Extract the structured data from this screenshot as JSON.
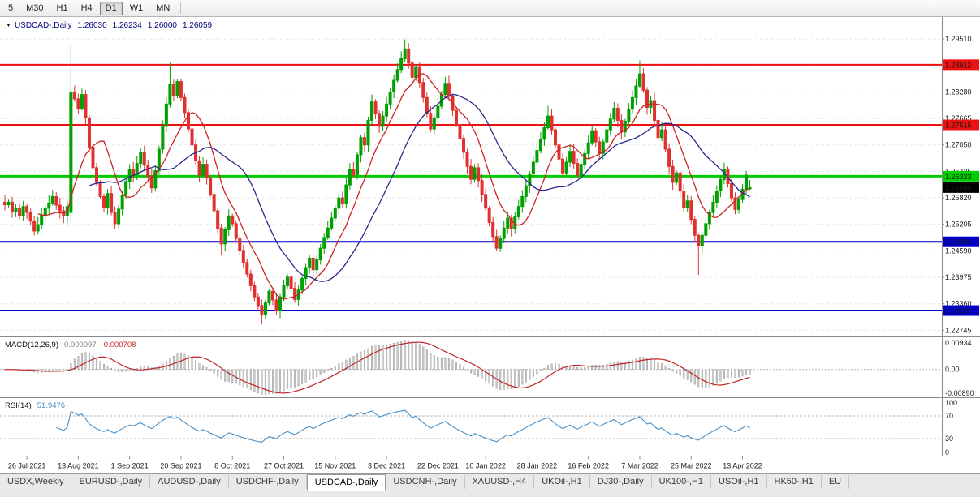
{
  "toolbar": {
    "buttons": [
      "5",
      "M30",
      "H1",
      "H4",
      "D1",
      "W1",
      "MN"
    ],
    "active": "D1"
  },
  "chart": {
    "title": {
      "dropdown": "▼",
      "symbol": "USDCAD-,Daily",
      "open": "1.26030",
      "high": "1.26234",
      "low": "1.26000",
      "close": "1.26059"
    },
    "price_axis_ticks": [
      "1.29510",
      "1.28895",
      "1.28280",
      "1.27665",
      "1.27050",
      "1.26435",
      "1.25820",
      "1.25205",
      "1.24590",
      "1.23975",
      "1.23360",
      "1.22745"
    ],
    "hlines": [
      {
        "price": 1.28912,
        "label": "1.28912",
        "color": "#ee1111",
        "width": 2
      },
      {
        "price": 1.27515,
        "label": "1.27515",
        "color": "#ee1111",
        "width": 2
      },
      {
        "price": 1.26323,
        "label": "1.26323",
        "color": "#00cc00",
        "width": 3
      },
      {
        "price": 1.248,
        "label": "1.24800",
        "color": "#0000cc",
        "width": 2
      },
      {
        "price": 1.23203,
        "label": "1.23203",
        "color": "#0000cc",
        "width": 2
      }
    ],
    "current_price": {
      "price": 1.26059,
      "label": "1.26059",
      "bg": "#000000"
    }
  },
  "chart_data": {
    "type": "candlestick",
    "symbol": "USDCAD",
    "timeframe": "Daily",
    "y_range": {
      "min": 1.2262,
      "max": 1.3002
    },
    "x_labels": [
      "26 Jul 2021",
      "13 Aug 2021",
      "1 Sep 2021",
      "20 Sep 2021",
      "8 Oct 2021",
      "27 Oct 2021",
      "15 Nov 2021",
      "3 Dec 2021",
      "22 Dec 2021",
      "10 Jan 2022",
      "28 Jan 2022",
      "16 Feb 2022",
      "7 Mar 2022",
      "25 Mar 2022",
      "13 Apr 2022"
    ],
    "x_label_indices": [
      6,
      20,
      34,
      48,
      62,
      76,
      90,
      104,
      118,
      131,
      145,
      159,
      173,
      187,
      201
    ],
    "closes": [
      1.2566,
      1.2572,
      1.255,
      1.2558,
      1.2541,
      1.2562,
      1.2548,
      1.2528,
      1.2505,
      1.252,
      1.2542,
      1.2558,
      1.257,
      1.2585,
      1.2565,
      1.2552,
      1.254,
      1.2562,
      1.2828,
      1.2812,
      1.279,
      1.2822,
      1.2768,
      1.27,
      1.2652,
      1.2618,
      1.2585,
      1.256,
      1.2592,
      1.2548,
      1.2522,
      1.2556,
      1.2588,
      1.262,
      1.2648,
      1.2635,
      1.2662,
      1.2688,
      1.2658,
      1.2632,
      1.2605,
      1.2645,
      1.2695,
      1.2748,
      1.28,
      1.2845,
      1.282,
      1.2852,
      1.2815,
      1.278,
      1.2742,
      1.2705,
      1.2668,
      1.2635,
      1.266,
      1.2628,
      1.259,
      1.2552,
      1.251,
      1.2475,
      1.2508,
      1.254,
      1.2522,
      1.2488,
      1.246,
      1.2432,
      1.2405,
      1.2378,
      1.2352,
      1.233,
      1.231,
      1.2338,
      1.2365,
      1.2345,
      1.232,
      1.2352,
      1.2378,
      1.2398,
      1.2372,
      1.2346,
      1.2368,
      1.2395,
      1.242,
      1.2442,
      1.2415,
      1.2438,
      1.2465,
      1.249,
      1.2512,
      1.2535,
      1.2558,
      1.2582,
      1.257,
      1.2612,
      1.2648,
      1.2635,
      1.2682,
      1.2722,
      1.2705,
      1.2762,
      1.2805,
      1.2778,
      1.2748,
      1.2772,
      1.28,
      1.2828,
      1.2855,
      1.288,
      1.2905,
      1.2928,
      1.2895,
      1.2862,
      1.2885,
      1.285,
      1.2815,
      1.2778,
      1.2742,
      1.2768,
      1.2795,
      1.2822,
      1.2848,
      1.2818,
      1.2785,
      1.2752,
      1.272,
      1.2688,
      1.2655,
      1.2625,
      1.2652,
      1.2622,
      1.259,
      1.2558,
      1.2525,
      1.2492,
      1.2465,
      1.2488,
      1.2512,
      1.2535,
      1.251,
      1.2538,
      1.2562,
      1.2585,
      1.261,
      1.2638,
      1.2665,
      1.2692,
      1.2718,
      1.2745,
      1.2772,
      1.274,
      1.2705,
      1.2672,
      1.264,
      1.2665,
      1.269,
      1.2662,
      1.2635,
      1.266,
      1.2685,
      1.271,
      1.2738,
      1.2712,
      1.2685,
      1.2712,
      1.274,
      1.2765,
      1.279,
      1.2762,
      1.2735,
      1.276,
      1.2788,
      1.2815,
      1.2842,
      1.287,
      1.2832,
      1.2792,
      1.2808,
      1.2762,
      1.2722,
      1.274,
      1.2695,
      1.2655,
      1.2618,
      1.264,
      1.2598,
      1.256,
      1.2575,
      1.2532,
      1.2495,
      1.247,
      1.2495,
      1.2522,
      1.2548,
      1.2572,
      1.2598,
      1.2625,
      1.2648,
      1.2615,
      1.2582,
      1.2555,
      1.2578,
      1.2602,
      1.2635,
      1.26059
    ],
    "overrides": {
      "18": [
        1.2548,
        1.2936,
        1.253,
        1.2828
      ],
      "45": [
        1.28,
        1.2896,
        1.2792,
        1.2845
      ],
      "59": [
        1.2512,
        1.2522,
        1.245,
        1.2475
      ],
      "70": [
        1.2332,
        1.2346,
        1.2288,
        1.231
      ],
      "109": [
        1.2905,
        1.295,
        1.2898,
        1.2928
      ],
      "148": [
        1.2745,
        1.2796,
        1.274,
        1.2772
      ],
      "173": [
        1.2842,
        1.2901,
        1.2838,
        1.287
      ],
      "189": [
        1.2495,
        1.25,
        1.2403,
        1.247
      ],
      "203": [
        1.2603,
        1.26234,
        1.26,
        1.26059
      ]
    },
    "colors": {
      "up": "#00A000",
      "down": "#E03030",
      "grid": "#dadada",
      "axis": "#8a8a8a"
    },
    "ma": [
      {
        "period": 10,
        "color": "#cc2222"
      },
      {
        "period": 24,
        "color": "#26268e"
      }
    ],
    "macd": {
      "label": "MACD(12,26,9)",
      "main_value": "0.000097",
      "signal_value": "-0.000708",
      "fast": 12,
      "slow": 26,
      "signal": 9,
      "axis": [
        "0.00934",
        "0.00",
        "-0.00890"
      ],
      "hist_color": "#cccccc",
      "hist_stroke": "#8f8f8f",
      "signal_color": "#c22525"
    },
    "rsi": {
      "label": "RSI(14)",
      "value": "51.9476",
      "period": 14,
      "axis": [
        "100",
        "70",
        "30",
        "0"
      ],
      "levels": [
        70,
        30
      ],
      "color": "#4a8fc4"
    }
  },
  "tabbar": {
    "tabs": [
      "USDX,Weekly",
      "EURUSD-,Daily",
      "AUDUSD-,Daily",
      "USDCHF-,Daily",
      "USDCAD-,Daily",
      "USDCNH-,Daily",
      "XAUUSD-,H4",
      "UKOil-,H1",
      "DJ30-,Daily",
      "UK100-,H1",
      "USOil-,H1",
      "HK50-,H1",
      "EU"
    ],
    "active": "USDCAD-,Daily"
  }
}
